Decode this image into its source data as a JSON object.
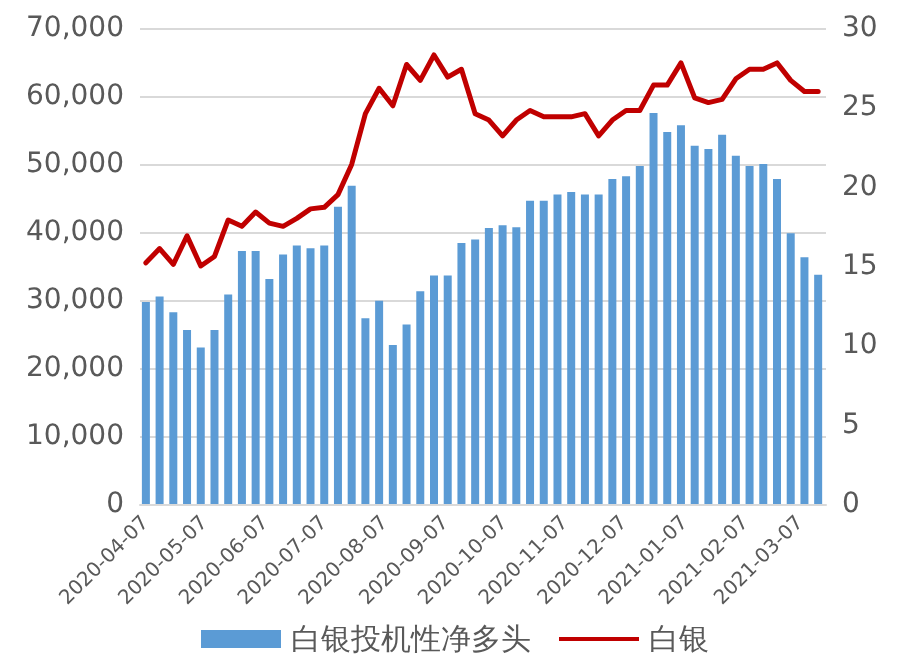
{
  "chart_data": {
    "type": "bar",
    "x": [
      "2020-04-07",
      "2020-04-14",
      "2020-04-21",
      "2020-04-28",
      "2020-05-05",
      "2020-05-12",
      "2020-05-19",
      "2020-05-26",
      "2020-06-02",
      "2020-06-09",
      "2020-06-16",
      "2020-06-23",
      "2020-06-30",
      "2020-07-07",
      "2020-07-14",
      "2020-07-21",
      "2020-07-28",
      "2020-08-04",
      "2020-08-11",
      "2020-08-18",
      "2020-08-25",
      "2020-09-01",
      "2020-09-08",
      "2020-09-15",
      "2020-09-22",
      "2020-09-29",
      "2020-10-06",
      "2020-10-13",
      "2020-10-20",
      "2020-10-27",
      "2020-11-03",
      "2020-11-10",
      "2020-11-17",
      "2020-11-24",
      "2020-12-01",
      "2020-12-08",
      "2020-12-15",
      "2020-12-22",
      "2020-12-29",
      "2021-01-05",
      "2021-01-12",
      "2021-01-19",
      "2021-01-26",
      "2021-02-02",
      "2021-02-09",
      "2021-02-16",
      "2021-02-23",
      "2021-03-02",
      "2021-03-09",
      "2021-03-16"
    ],
    "series": [
      {
        "name": "白银投机性净多头",
        "color": "#5b9bd5",
        "values": [
          29700,
          30500,
          28200,
          25600,
          23000,
          25600,
          30800,
          37200,
          37200,
          33100,
          36700,
          38000,
          37600,
          38000,
          43700,
          46800,
          27300,
          29900,
          23400,
          26400,
          31300,
          33600,
          33600,
          38400,
          38900,
          40600,
          41000,
          40700,
          44600,
          44600,
          45500,
          45900,
          45500,
          45500,
          47800,
          48200,
          49700,
          57500,
          54700,
          55700,
          52700,
          52200,
          54300,
          51200,
          49700,
          50000,
          47800,
          39800,
          36300,
          33700
        ]
      },
      {
        "name": "白银",
        "type": "line",
        "axis": "y2",
        "color": "#c00000",
        "values": [
          15.2,
          16.1,
          15.1,
          16.9,
          15.0,
          15.6,
          17.9,
          17.5,
          18.4,
          17.7,
          17.5,
          18.0,
          18.6,
          18.7,
          19.5,
          21.4,
          24.6,
          26.2,
          25.1,
          27.7,
          26.7,
          28.3,
          26.9,
          27.4,
          24.6,
          24.2,
          23.2,
          24.2,
          24.8,
          24.4,
          24.4,
          24.4,
          24.6,
          23.2,
          24.2,
          24.8,
          24.8,
          26.4,
          26.4,
          27.8,
          25.6,
          25.3,
          25.5,
          26.8,
          27.4,
          27.4,
          27.8,
          26.7,
          26.0,
          26.0
        ]
      }
    ],
    "xlim": [
      "2020-04-04",
      "2021-03-20"
    ],
    "xticks": [
      "2020-04-07",
      "2020-05-07",
      "2020-06-07",
      "2020-07-07",
      "2020-08-07",
      "2020-09-07",
      "2020-10-07",
      "2020-11-07",
      "2020-12-07",
      "2021-01-07",
      "2021-02-07",
      "2021-03-07"
    ],
    "ylim": [
      0,
      70000
    ],
    "yticks": [
      {
        "value": 0,
        "label": "0"
      },
      {
        "value": 10000,
        "label": "10,000"
      },
      {
        "value": 20000,
        "label": "20,000"
      },
      {
        "value": 30000,
        "label": "30,000"
      },
      {
        "value": 40000,
        "label": "40,000"
      },
      {
        "value": 50000,
        "label": "50,000"
      },
      {
        "value": 60000,
        "label": "60,000"
      },
      {
        "value": 70000,
        "label": "70,000"
      }
    ],
    "y2lim": [
      0,
      30
    ],
    "y2ticks": [
      0,
      5,
      10,
      15,
      20,
      25,
      30
    ],
    "grid": "y",
    "legend": "bottom",
    "marker": "none",
    "line_style": "solid"
  }
}
